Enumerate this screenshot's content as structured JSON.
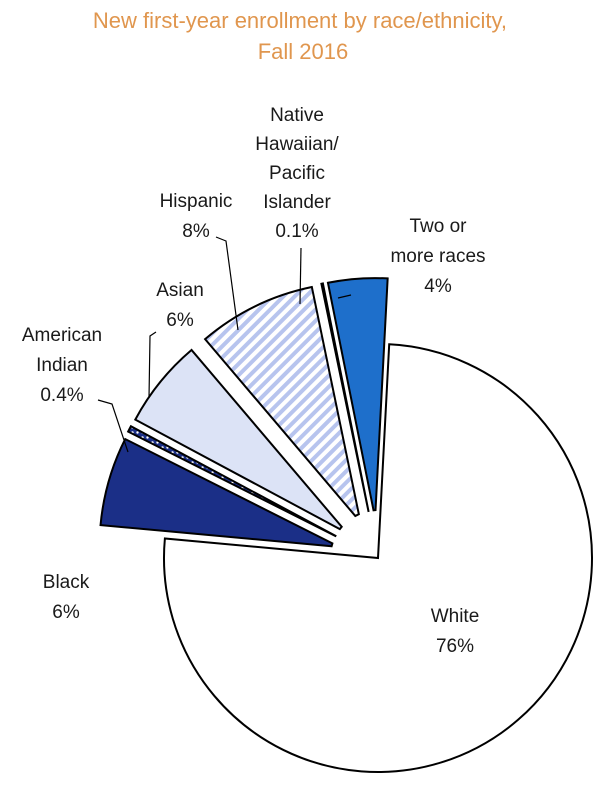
{
  "chart_data": {
    "type": "pie",
    "title": [
      "New first-year enrollment by race/ethnicity,",
      "Fall 2016"
    ],
    "title_color": "#E0964E",
    "slices": [
      {
        "key": "white",
        "label": [
          "White"
        ],
        "value_label": "76%",
        "value": 76,
        "fill": "#FFFFFF",
        "pattern": ""
      },
      {
        "key": "black",
        "label": [
          "Black"
        ],
        "value_label": "6%",
        "value": 6,
        "fill": "#1B2F87",
        "pattern": ""
      },
      {
        "key": "american_indian",
        "label": [
          "American",
          "Indian"
        ],
        "value_label": "0.4%",
        "value": 0.4,
        "fill": "#1B2F87",
        "pattern": "dots"
      },
      {
        "key": "asian",
        "label": [
          "Asian"
        ],
        "value_label": "6%",
        "value": 6,
        "fill": "#DCE3F6",
        "pattern": ""
      },
      {
        "key": "hispanic",
        "label": [
          "Hispanic"
        ],
        "value_label": "8%",
        "value": 8,
        "fill": "#FFFFFF",
        "pattern": "stripes"
      },
      {
        "key": "native_hawaiian",
        "label": [
          "Native",
          "Hawaiian/",
          "Pacific",
          "Islander"
        ],
        "value_label": "0.1%",
        "value": 0.1,
        "fill": "#FFFFFF",
        "pattern": ""
      },
      {
        "key": "two_or_more",
        "label": [
          "Two or",
          "more races"
        ],
        "value_label": "4%",
        "value": 4,
        "fill": "#1E6FCB",
        "pattern": ""
      }
    ],
    "colors": {
      "dark_navy": "#1B2F87",
      "light_lavender": "#DCE3F6",
      "stripe_blue": "#B7C4EE",
      "medium_blue": "#1E6FCB"
    }
  }
}
